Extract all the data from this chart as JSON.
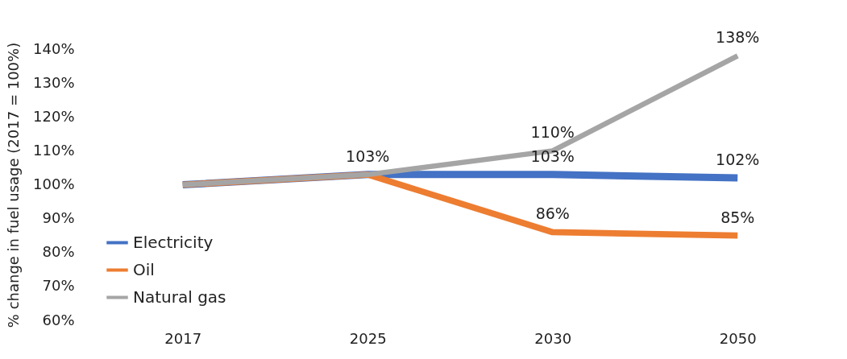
{
  "chart_data": {
    "type": "line",
    "ylabel": "% change in fuel usage (2017 = 100%)",
    "categories": [
      "2017",
      "2025",
      "2030",
      "2050"
    ],
    "series": [
      {
        "name": "Electricity",
        "color": "#4472c4",
        "values": [
          100,
          103,
          103,
          102
        ],
        "value_labels": [
          null,
          null,
          "103%",
          "102%"
        ]
      },
      {
        "name": "Oil",
        "color": "#ed7d31",
        "values": [
          100,
          103,
          86,
          85
        ],
        "value_labels": [
          null,
          null,
          "86%",
          "85%"
        ]
      },
      {
        "name": "Natural gas",
        "color": "#a5a5a5",
        "values": [
          100,
          103,
          110,
          138
        ],
        "value_labels": [
          null,
          "103%",
          "110%",
          "138%"
        ]
      }
    ],
    "ylim": [
      60,
      140
    ],
    "yticks": [
      {
        "value": 60,
        "label": "60%"
      },
      {
        "value": 70,
        "label": "70%"
      },
      {
        "value": 80,
        "label": "80%"
      },
      {
        "value": 90,
        "label": "90%"
      },
      {
        "value": 100,
        "label": "100%"
      },
      {
        "value": 110,
        "label": "110%"
      },
      {
        "value": 120,
        "label": "120%"
      },
      {
        "value": 130,
        "label": "130%"
      },
      {
        "value": 140,
        "label": "140%"
      }
    ],
    "legend": "bottom left",
    "grid": false,
    "marker": "none",
    "line_style": "solid"
  }
}
